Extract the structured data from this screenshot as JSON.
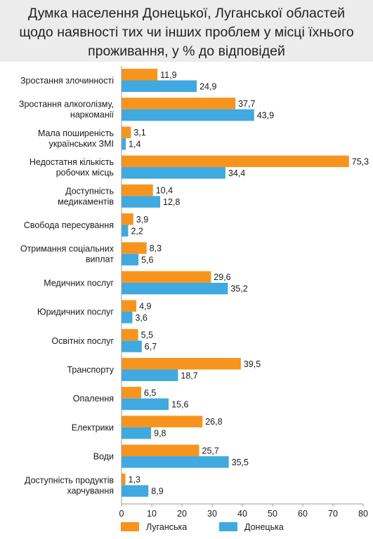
{
  "title_lines": [
    "Думка населення Донецької, Луганської областей",
    "щодо наявності тих чи інших проблем у місці їхнього",
    "проживання, у % до відповідей"
  ],
  "chart_data": {
    "type": "bar",
    "orientation": "horizontal",
    "title": "Думка населення Донецької, Луганської областей щодо наявності тих чи інших проблем у місці їхнього проживання, у % до відповідей",
    "categories": [
      [
        "Зростання злочинності"
      ],
      [
        "Зростання алкоголізму,",
        "наркоманії"
      ],
      [
        "Мала поширеність",
        "українських ЗМІ"
      ],
      [
        "Недостатня кількість",
        "робочих місць"
      ],
      [
        "Доступність",
        "медикаментів"
      ],
      [
        "Свобода пересування"
      ],
      [
        "Отримання соціальних",
        "виплат"
      ],
      [
        "Медичних послуг"
      ],
      [
        "Юридичних послуг"
      ],
      [
        "Освітніх послуг"
      ],
      [
        "Транспорту"
      ],
      [
        "Опалення"
      ],
      [
        "Електрики"
      ],
      [
        "Води"
      ],
      [
        "Доступність продуктів",
        "харчування"
      ]
    ],
    "series": [
      {
        "name": "Луганська",
        "color": "#f7941d",
        "values": [
          11.9,
          37.7,
          3.1,
          75.3,
          10.4,
          3.9,
          8.3,
          29.6,
          4.9,
          5.5,
          39.5,
          6.5,
          26.8,
          25.7,
          1.3
        ],
        "labels": [
          "11,9",
          "37,7",
          "3,1",
          "75,3",
          "10,4",
          "3,9",
          "8,3",
          "29,6",
          "4,9",
          "5,5",
          "39,5",
          "6,5",
          "26,8",
          "25,7",
          "1,3"
        ]
      },
      {
        "name": "Донецька",
        "color": "#3fa9e0",
        "values": [
          24.9,
          43.9,
          1.4,
          34.4,
          12.8,
          2.2,
          5.6,
          35.2,
          3.6,
          6.7,
          18.7,
          15.6,
          9.8,
          35.5,
          8.9
        ],
        "labels": [
          "24,9",
          "43,9",
          "1,4",
          "34,4",
          "12,8",
          "2,2",
          "5,6",
          "35,2",
          "3,6",
          "6,7",
          "18,7",
          "15,6",
          "9,8",
          "35,5",
          "8,9"
        ]
      }
    ],
    "xlim": [
      0,
      80
    ],
    "xticks": [
      0,
      10,
      20,
      30,
      40,
      50,
      60,
      70,
      80
    ],
    "xticklabels": [
      "0",
      "10",
      "20",
      "30",
      "40",
      "50",
      "60",
      "70",
      "80"
    ],
    "grid": false,
    "legend_position": "bottom"
  }
}
